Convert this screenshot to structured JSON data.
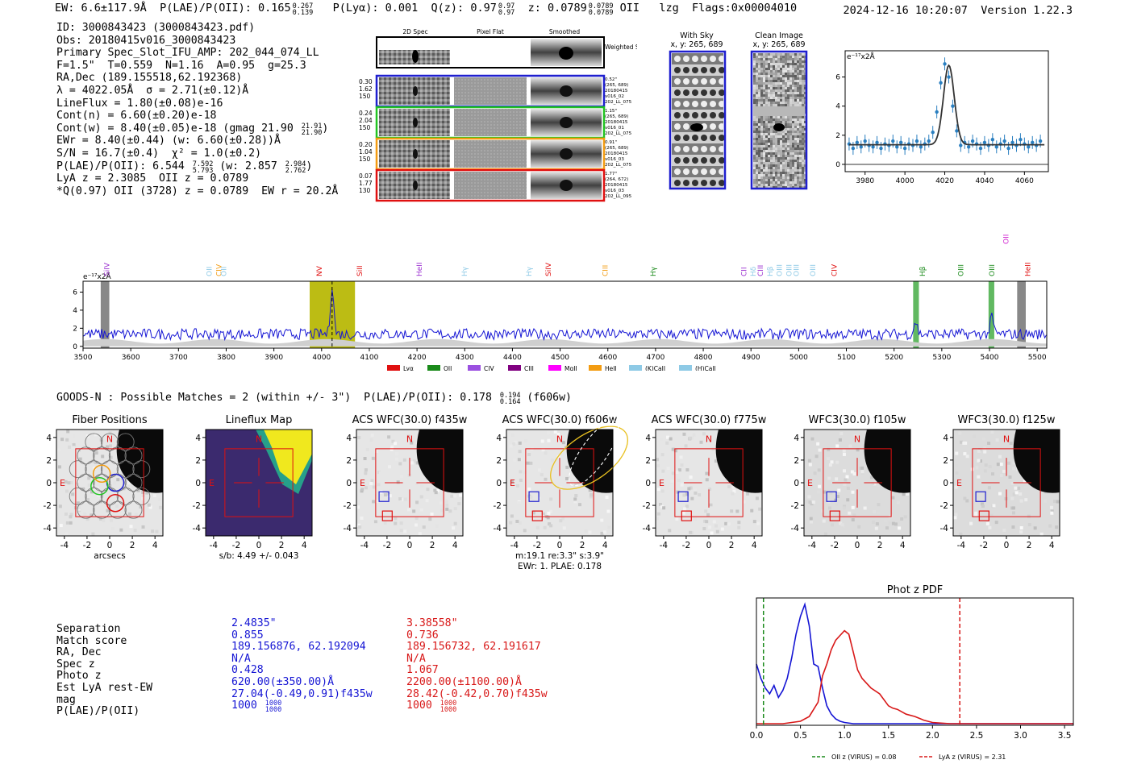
{
  "header": {
    "ew": "EW: 6.6±117.9Å",
    "plae_label": "P(LAE)/P(OII): 0.165",
    "plae_hi": "0.267",
    "plae_lo": "0.139",
    "plya": "P(Lyα): 0.001",
    "qz_label": "Q(z): 0.97",
    "qz_hi": "0.97",
    "qz_lo": "0.97",
    "z_label": "z: 0.0789",
    "z_hi": "0.0789",
    "z_lo": "0.0789",
    "z_line": "OII",
    "user": "lzg",
    "flags": "Flags:0x00004010",
    "timestamp": "2024-12-16 10:20:07",
    "version": "Version 1.22.3"
  },
  "info": {
    "id": "ID: 3000843423 (3000843423.pdf)",
    "obs": "Obs: 20180415v016_3000843423",
    "primary": "Primary Spec_Slot_IFU_AMP: 202_044_074_LL",
    "fwhm": "F=1.5\"  T=0.559  N=1.16  A=0.95  g=25.3",
    "radec": "RA,Dec (189.155518,62.192368)",
    "lambda": "λ = 4022.05Å  σ = 2.71(±0.12)Å",
    "lineflux": "LineFlux = 1.80(±0.08)e-16",
    "contn": "Cont(n) = 6.60(±0.20)e-18",
    "contw_main": "Cont(w) = 8.40(±0.05)e-18 (gmag 21.90",
    "contw_hi": "21.91",
    "contw_lo": "21.90",
    "contw_close": ")",
    "ewr": "EWr = 8.40(±0.44) (w: 6.60(±0.28))Å",
    "sn": "S/N = 16.7(±0.4)  χ² = 1.0(±0.2)",
    "plae_main": "P(LAE)/P(OII): 6.544",
    "plae_hi": "7.592",
    "plae_lo": "5.793",
    "plae_w": "(w: 2.857",
    "plae_w_hi": "2.984",
    "plae_w_lo": "2.762",
    "plae_close": ")",
    "lya": "LyA z = 2.3085  OII z = 0.0789",
    "qline": "*Q(0.97) OII (3728) z = 0.0789  EW r = 20.2Å"
  },
  "cutouts": {
    "col_2dspec": "2D Spec",
    "col_pixelflat": "Pixel Flat",
    "col_smoothed": "Smoothed",
    "weighted_sum": "Weighted Sum",
    "rows": [
      {
        "vals": [
          "0.30",
          "1.62",
          "150"
        ],
        "meta": [
          "0.52\"",
          "(265, 689)",
          "20180415",
          "v016_02",
          "202_LL_075"
        ],
        "color": "#1f1fcf"
      },
      {
        "vals": [
          "0.24",
          "2.04",
          "150"
        ],
        "meta": [
          "1.15\"",
          "(265, 689)",
          "20180415",
          "v016_01",
          "202_LL_075"
        ],
        "color": "#22c422"
      },
      {
        "vals": [
          "0.20",
          "1.04",
          "150"
        ],
        "meta": [
          "0.91\"",
          "(265, 689)",
          "20180415",
          "v016_03",
          "202_LL_075"
        ],
        "color": "#f39c12"
      },
      {
        "vals": [
          "0.07",
          "1.77",
          "130"
        ],
        "meta": [
          "1.77\"",
          "(264, 672)",
          "20180415",
          "v016_03",
          "202_LL_095"
        ],
        "color": "#e01010"
      }
    ],
    "with_sky_title": "With Sky",
    "with_sky_coord": "x, y: 265, 689",
    "clean_title": "Clean Image",
    "clean_coord": "x, y: 265, 689"
  },
  "zoom_plot": {
    "ylabel": "e⁻¹⁷x2Å",
    "xticks": [
      "3980",
      "4000",
      "4020",
      "4040",
      "4060"
    ],
    "yticks": [
      "0",
      "2",
      "4",
      "6"
    ]
  },
  "full_spec": {
    "ylabel": "e⁻¹⁷x2Å",
    "xticks": [
      "3500",
      "3600",
      "3700",
      "3800",
      "3900",
      "4000",
      "4100",
      "4200",
      "4300",
      "4400",
      "4500",
      "4600",
      "4700",
      "4800",
      "4900",
      "5000",
      "5100",
      "5200",
      "5300",
      "5400",
      "5500"
    ],
    "yticks": [
      "0",
      "2",
      "4",
      "6"
    ],
    "line_labels": [
      {
        "t": "SiIV",
        "c": "#9b30d0"
      },
      {
        "t": "OII",
        "c": "#8ecae6"
      },
      {
        "t": "CIV",
        "c": "#f39c12"
      },
      {
        "t": "OII",
        "c": "#8ecae6"
      },
      {
        "t": "NV",
        "c": "#e01010"
      },
      {
        "t": "SiII",
        "c": "#e01010"
      },
      {
        "t": "HeII",
        "c": "#9b30d0"
      },
      {
        "t": "Hγ",
        "c": "#8ecae6"
      },
      {
        "t": "Hγ",
        "c": "#8ecae6"
      },
      {
        "t": "SiIV",
        "c": "#e01010"
      },
      {
        "t": "CIII",
        "c": "#f39c12"
      },
      {
        "t": "Hγ",
        "c": "#1a8a1a"
      },
      {
        "t": "CII",
        "c": "#9b30d0"
      },
      {
        "t": "Hδ",
        "c": "#8ecae6"
      },
      {
        "t": "CIII",
        "c": "#9b30d0"
      },
      {
        "t": "Hβ",
        "c": "#8ecae6"
      },
      {
        "t": "OIII",
        "c": "#8ecae6"
      },
      {
        "t": "OIII",
        "c": "#8ecae6"
      },
      {
        "t": "OIII",
        "c": "#8ecae6"
      },
      {
        "t": "OIII",
        "c": "#8ecae6"
      },
      {
        "t": "CIV",
        "c": "#e01010"
      },
      {
        "t": "Hβ",
        "c": "#1a8a1a"
      },
      {
        "t": "OIII",
        "c": "#1a8a1a"
      },
      {
        "t": "OIII",
        "c": "#1a8a1a"
      },
      {
        "t": "OII",
        "c": "#d020d0"
      },
      {
        "t": "HeII",
        "c": "#e01010"
      }
    ],
    "legend": [
      {
        "t": "Lyα",
        "c": "#e01010"
      },
      {
        "t": "OII",
        "c": "#1a8a1a"
      },
      {
        "t": "CIV",
        "c": "#9b50e0"
      },
      {
        "t": "CIII",
        "c": "#800080"
      },
      {
        "t": "MgII",
        "c": "#ff00ff"
      },
      {
        "t": "HeII",
        "c": "#f39c12"
      },
      {
        "t": "(K)CaII",
        "c": "#8ecae6"
      },
      {
        "t": "(H)CaII",
        "c": "#8ecae6"
      }
    ]
  },
  "match": {
    "header_main": "GOODS-N : Possible Matches = 2 (within +/- 3\")  P(LAE)/P(OII): 0.178",
    "header_hi": "0.194",
    "header_lo": "0.164",
    "header_band": "(f606w)",
    "panels": [
      {
        "title": "Fiber Positions",
        "footer": "arcsecs"
      },
      {
        "title": "Lineflux Map",
        "footer": "s/b: 4.49 +/- 0.043"
      },
      {
        "title": "ACS WFC(30.0) f435w",
        "footer": ""
      },
      {
        "title": "ACS WFC(30.0) f606w",
        "footer": "m:19.1  re:3.3\"  s:3.9\"",
        "footer2": "EWr: 1. PLAE: 0.178"
      },
      {
        "title": "ACS WFC(30.0) f775w",
        "footer": ""
      },
      {
        "title": "WFC3(30.0) f105w",
        "footer": ""
      },
      {
        "title": "WFC3(30.0) f125w",
        "footer": ""
      }
    ],
    "ticks": [
      "-4",
      "-2",
      "0",
      "2",
      "4"
    ],
    "north": "N",
    "east": "E"
  },
  "table": {
    "labels": [
      "Separation",
      "Match score",
      "RA, Dec",
      "Spec z",
      "Photo z",
      "Est LyA rest-EW",
      "mag",
      "P(LAE)/P(OII)"
    ],
    "blue": [
      "2.4835\"",
      "0.855",
      "189.156876, 62.192094",
      "N/A",
      "0.428",
      "620.00(±350.00)Å",
      "27.04(-0.49,0.91)f435w",
      "1000"
    ],
    "blue_sup": "1000",
    "blue_sub": "1000",
    "red": [
      "3.38558\"",
      "0.736",
      "189.156732, 62.191617",
      "N/A",
      "1.067",
      "2200.00(±1100.00)Å",
      "28.42(-0.42,0.70)f435w",
      "1000"
    ],
    "red_sup": "1000",
    "red_sub": "1000"
  },
  "chart_data": [
    {
      "type": "line",
      "title": "",
      "xlabel": "",
      "ylabel": "e⁻¹⁷x2Å",
      "xlim": [
        3970,
        4072
      ],
      "ylim": [
        -0.5,
        7.8
      ],
      "series": [
        {
          "name": "spectrum",
          "x": [
            3972,
            3974,
            3976,
            3978,
            3980,
            3982,
            3984,
            3986,
            3988,
            3990,
            3992,
            3994,
            3996,
            3998,
            4000,
            4002,
            4004,
            4006,
            4008,
            4010,
            4012,
            4014,
            4016,
            4018,
            4020,
            4022,
            4024,
            4026,
            4028,
            4030,
            4032,
            4034,
            4036,
            4038,
            4040,
            4042,
            4044,
            4046,
            4048,
            4050,
            4052,
            4054,
            4056,
            4058,
            4060,
            4062,
            4064,
            4066,
            4068
          ],
          "y": [
            1.4,
            1.1,
            1.5,
            1.2,
            1.6,
            1.3,
            1.2,
            1.5,
            1.1,
            1.4,
            1.3,
            1.6,
            1.2,
            1.5,
            1.1,
            1.4,
            1.3,
            1.6,
            1.2,
            1.4,
            1.6,
            2.2,
            3.6,
            5.6,
            6.9,
            6.0,
            4.0,
            2.3,
            1.3,
            1.5,
            1.2,
            1.6,
            1.4,
            1.1,
            1.5,
            1.3,
            1.7,
            1.2,
            1.4,
            1.6,
            1.1,
            1.5,
            1.3,
            1.7,
            1.4,
            1.2,
            1.5,
            1.3,
            1.6
          ]
        },
        {
          "name": "gaussian fit",
          "peak": 6.8,
          "center": 4022.05,
          "sigma": 2.71,
          "continuum": 1.35
        }
      ]
    },
    {
      "type": "line",
      "title": "",
      "xlabel": "",
      "ylabel": "e⁻¹⁷x2Å",
      "xlim": [
        3500,
        5520
      ],
      "ylim": [
        -0.2,
        7.2
      ],
      "highlight_ranges": [
        [
          3975,
          4070
        ]
      ],
      "emission_lines": [
        4022,
        5245,
        5405
      ],
      "series": [
        {
          "name": "spectrum",
          "continuum": 1.35,
          "peaks": [
            {
              "x": 4022,
              "y": 6.8
            },
            {
              "x": 5245,
              "y": 2.8
            },
            {
              "x": 5405,
              "y": 3.2
            }
          ]
        }
      ]
    },
    {
      "type": "line",
      "title": "Phot z PDF",
      "xlabel": "",
      "ylabel": "",
      "xlim": [
        0.0,
        3.6
      ],
      "xticks": [
        "0.0",
        "0.5",
        "1.0",
        "1.5",
        "2.0",
        "2.5",
        "3.0",
        "3.5"
      ],
      "series": [
        {
          "name": "blue",
          "x": [
            0.0,
            0.05,
            0.1,
            0.15,
            0.2,
            0.25,
            0.3,
            0.35,
            0.4,
            0.45,
            0.5,
            0.55,
            0.6,
            0.65,
            0.7,
            0.75,
            0.8,
            0.85,
            0.9,
            0.95,
            1.0,
            1.1,
            1.2,
            1.4,
            1.6,
            2.0,
            3.6
          ],
          "y": [
            0.5,
            0.38,
            0.3,
            0.25,
            0.32,
            0.22,
            0.28,
            0.38,
            0.55,
            0.75,
            0.9,
            1.0,
            0.82,
            0.5,
            0.48,
            0.3,
            0.15,
            0.08,
            0.04,
            0.02,
            0.01,
            0.0,
            0.0,
            0.0,
            0.0,
            0.0,
            0.0
          ]
        },
        {
          "name": "red",
          "x": [
            0.0,
            0.3,
            0.5,
            0.6,
            0.7,
            0.75,
            0.8,
            0.85,
            0.9,
            0.95,
            1.0,
            1.05,
            1.1,
            1.15,
            1.2,
            1.3,
            1.4,
            1.5,
            1.55,
            1.6,
            1.7,
            1.8,
            1.9,
            2.0,
            2.1,
            2.2,
            2.4,
            3.6
          ],
          "y": [
            0.0,
            0.0,
            0.02,
            0.06,
            0.18,
            0.4,
            0.5,
            0.62,
            0.7,
            0.74,
            0.78,
            0.75,
            0.6,
            0.45,
            0.38,
            0.3,
            0.25,
            0.15,
            0.13,
            0.12,
            0.08,
            0.06,
            0.03,
            0.01,
            0.005,
            0.0,
            0.0,
            0.0
          ]
        }
      ],
      "vlines": [
        {
          "x": 0.08,
          "label": "OII z (VIRUS) = 0.08",
          "color": "#1a8a1a"
        },
        {
          "x": 2.31,
          "label": "LyA z (VIRUS) = 2.31",
          "color": "#d81818"
        }
      ]
    }
  ]
}
